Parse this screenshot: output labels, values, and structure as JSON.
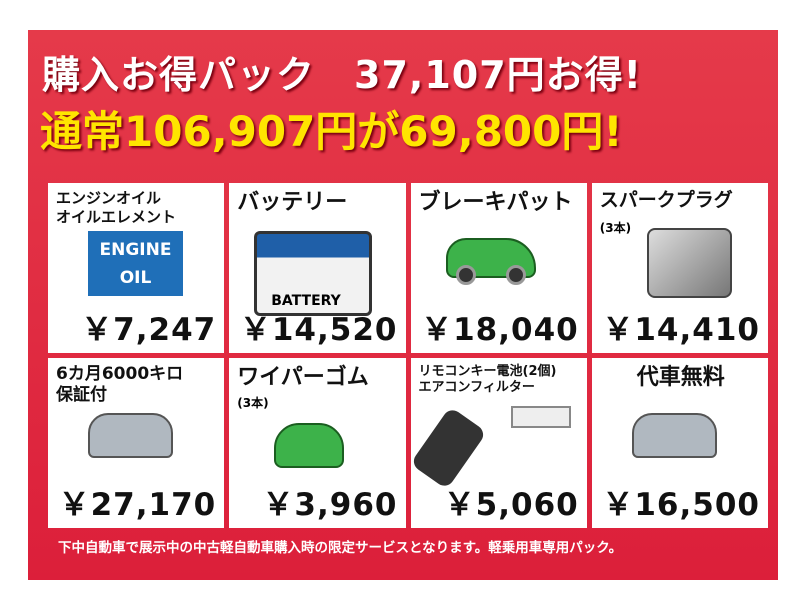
{
  "headline": "購入お得パック　37,107円お得!",
  "subheadline": "通常106,907円が69,800円!",
  "items": [
    {
      "title": "エンジンオイル\nオイルエレメント",
      "price": "￥7,247",
      "image_text": "ENGINE OIL"
    },
    {
      "title": "バッテリー",
      "price": "￥14,520",
      "image_text": "BATTERY"
    },
    {
      "title": "ブレーキパット",
      "price": "￥18,040"
    },
    {
      "title": "スパークプラグ",
      "note": "(3本)",
      "price": "￥14,410"
    },
    {
      "title": "6カ月6000キロ\n保証付",
      "price": "￥27,170"
    },
    {
      "title": "ワイパーゴム",
      "note": "(3本)",
      "price": "￥3,960"
    },
    {
      "title": "リモコンキー電池(2個)\nエアコンフィルター",
      "price": "￥5,060"
    },
    {
      "title": "代車無料",
      "price": "￥16,500"
    }
  ],
  "footer": "下中自動車で展示中の中古軽自動車購入時の限定サービスとなります。軽乗用車専用パック。",
  "colors": {
    "background": "#e0283f",
    "headline": "#ffffff",
    "subheadline": "#ffe500"
  }
}
